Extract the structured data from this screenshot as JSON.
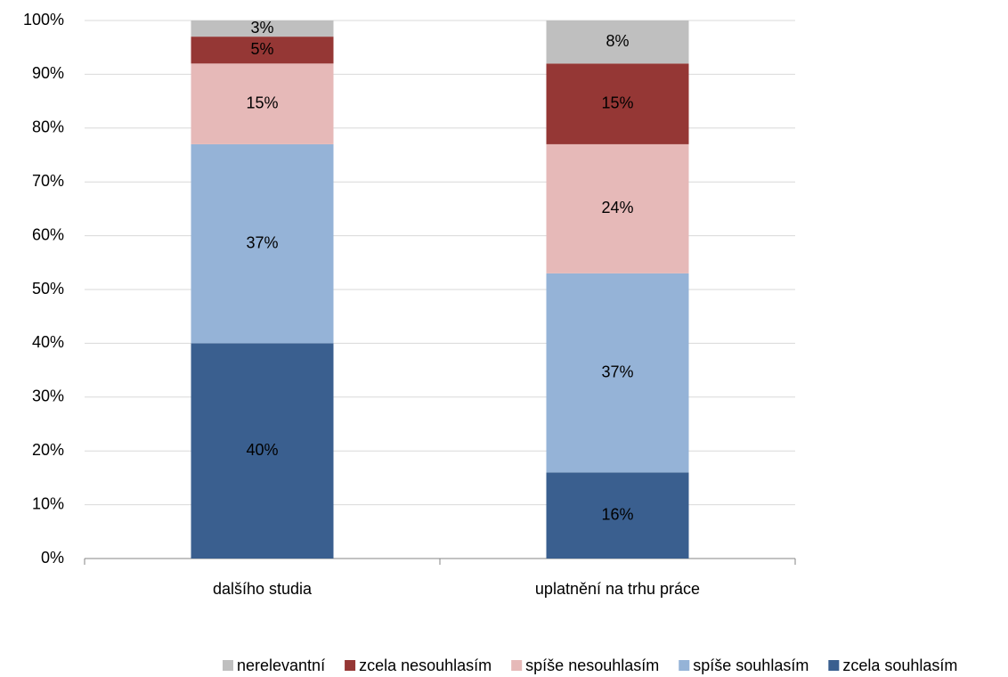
{
  "chart_data": {
    "type": "stacked_bar",
    "categories": [
      "dalšího studia",
      "uplatnění na trhu práce"
    ],
    "series": [
      {
        "name": "nerelevantní",
        "color": "#bfbfbf",
        "values": [
          3,
          8
        ],
        "value_labels": [
          "3%",
          "8%"
        ]
      },
      {
        "name": "zcela nesouhlasím",
        "color": "#953735",
        "values": [
          5,
          15
        ],
        "value_labels": [
          "5%",
          "15%"
        ]
      },
      {
        "name": "spíše nesouhlasím",
        "color": "#e6b9b8",
        "values": [
          15,
          24
        ],
        "value_labels": [
          "15%",
          "24%"
        ]
      },
      {
        "name": "spíše souhlasím",
        "color": "#95b3d7",
        "values": [
          37,
          37
        ],
        "value_labels": [
          "37%",
          "37%"
        ]
      },
      {
        "name": "zcela souhlasím",
        "color": "#3a5f8f",
        "values": [
          40,
          16
        ],
        "value_labels": [
          "40%",
          "16%"
        ]
      }
    ],
    "ylim": [
      0,
      100
    ],
    "yticks": [
      {
        "value": 0,
        "label": "0%"
      },
      {
        "value": 10,
        "label": "10%"
      },
      {
        "value": 20,
        "label": "20%"
      },
      {
        "value": 30,
        "label": "30%"
      },
      {
        "value": 40,
        "label": "40%"
      },
      {
        "value": 50,
        "label": "50%"
      },
      {
        "value": 60,
        "label": "60%"
      },
      {
        "value": 70,
        "label": "70%"
      },
      {
        "value": 80,
        "label": "80%"
      },
      {
        "value": 90,
        "label": "90%"
      },
      {
        "value": 100,
        "label": "100%"
      }
    ],
    "grid": true,
    "legend": "bottom"
  }
}
